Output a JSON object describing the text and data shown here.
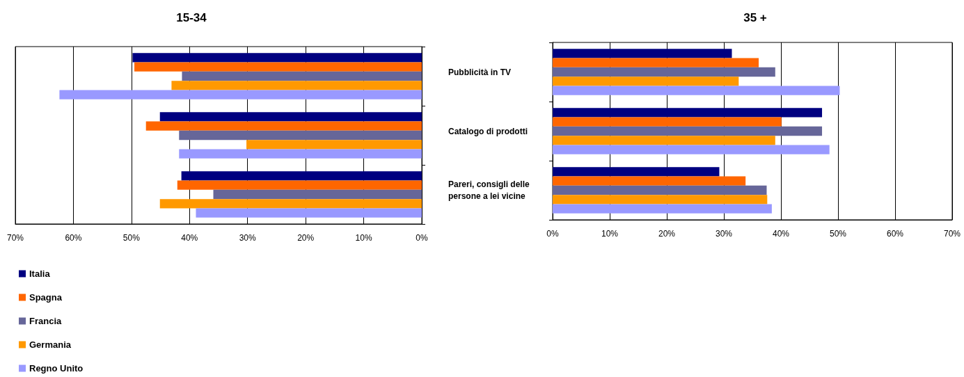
{
  "chart_data": [
    {
      "type": "bar",
      "title": "15-34",
      "orientation": "horizontal",
      "categories": [
        "Pubblicità in TV",
        "Catalogo di prodotti",
        "Pareri, consigli delle persone a lei vicine"
      ],
      "tick_labels": "x",
      "grid": "x",
      "legend": "bottom left",
      "xlim": [
        70,
        0
      ],
      "xticks": [
        {
          "value": 70,
          "label": "70%"
        },
        {
          "value": 60,
          "label": "60%"
        },
        {
          "value": 50,
          "label": "50%"
        },
        {
          "value": 40,
          "label": "40%"
        },
        {
          "value": 30,
          "label": "30%"
        },
        {
          "value": 20,
          "label": "20%"
        },
        {
          "value": 10,
          "label": "10%"
        },
        {
          "value": 0,
          "label": "0%"
        }
      ],
      "series": [
        {
          "name": "Italia",
          "color": "#000080",
          "values": [
            49.8,
            45.1,
            41.4
          ]
        },
        {
          "name": "Spagna",
          "color": "#ff6600",
          "values": [
            49.5,
            47.5,
            42.1
          ]
        },
        {
          "name": "Francia",
          "color": "#666699",
          "values": [
            41.3,
            41.8,
            35.9
          ]
        },
        {
          "name": "Germania",
          "color": "#ff9900",
          "values": [
            43.1,
            30.2,
            45.1
          ]
        },
        {
          "name": "Regno Unito",
          "color": "#9999ff",
          "values": [
            62.4,
            41.8,
            38.9
          ]
        }
      ]
    },
    {
      "type": "bar",
      "title": "35 +",
      "orientation": "horizontal",
      "categories": [
        "Pubblicità in TV",
        "Catalogo di prodotti",
        "Pareri, consigli delle persone a lei vicine"
      ],
      "grid": "x",
      "xlim": [
        0,
        70
      ],
      "xticks": [
        {
          "value": 0,
          "label": "0%"
        },
        {
          "value": 10,
          "label": "10%"
        },
        {
          "value": 20,
          "label": "20%"
        },
        {
          "value": 30,
          "label": "30%"
        },
        {
          "value": 40,
          "label": "40%"
        },
        {
          "value": 50,
          "label": "50%"
        },
        {
          "value": 60,
          "label": "60%"
        },
        {
          "value": 70,
          "label": "70%"
        }
      ],
      "series": [
        {
          "color": "#000080",
          "values": [
            31.4,
            47.2,
            29.2
          ]
        },
        {
          "color": "#ff6600",
          "values": [
            36.1,
            40.1,
            33.8
          ]
        },
        {
          "color": "#666699",
          "values": [
            39.0,
            47.2,
            37.5
          ]
        },
        {
          "color": "#ff9900",
          "values": [
            32.6,
            39.0,
            37.6
          ]
        },
        {
          "color": "#9999ff",
          "values": [
            50.3,
            48.5,
            38.4
          ]
        }
      ]
    }
  ]
}
